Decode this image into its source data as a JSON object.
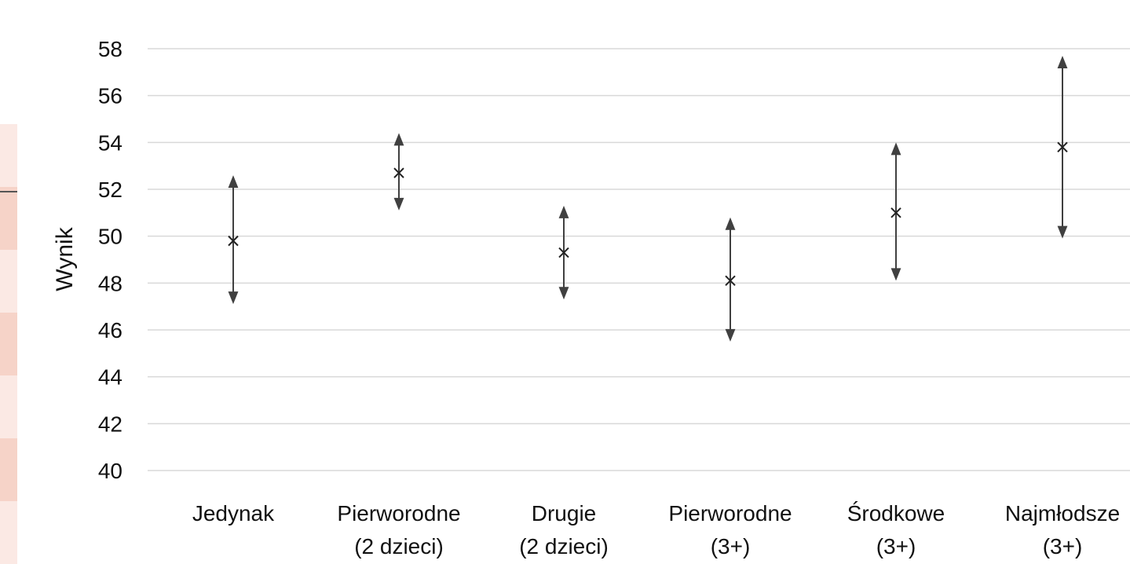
{
  "chart_data": {
    "type": "scatter",
    "title": "",
    "xlabel": "",
    "ylabel": "Wynik",
    "ylim": [
      40,
      58
    ],
    "yticks": [
      40,
      42,
      44,
      46,
      48,
      50,
      52,
      54,
      56,
      58
    ],
    "grid": true,
    "legend": "none",
    "categories": [
      {
        "line1": "Jedynak",
        "line2": ""
      },
      {
        "line1": "Pierworodne",
        "line2": "(2 dzieci)"
      },
      {
        "line1": "Drugie",
        "line2": "(2 dzieci)"
      },
      {
        "line1": "Pierworodne",
        "line2": "(3+)"
      },
      {
        "line1": "Środkowe",
        "line2": "(3+)"
      },
      {
        "line1": "Najmłodsze",
        "line2": "(3+)"
      }
    ],
    "series": [
      {
        "values": [
          49.8,
          52.7,
          49.3,
          48.1,
          51.0,
          53.8
        ],
        "lower": [
          47.1,
          51.1,
          47.3,
          45.5,
          48.1,
          49.9
        ],
        "upper": [
          52.6,
          54.4,
          51.3,
          50.8,
          54.0,
          57.7
        ]
      }
    ],
    "colors": {
      "grid": "#d9d9d9",
      "mark": "#222222",
      "errorbar": "#404040"
    }
  },
  "decor": {
    "left_strip_colors": [
      "#fbe9e4",
      "#f6d3c8",
      "#fbe9e4",
      "#f6d3c8",
      "#fbe9e4",
      "#f6d3c8",
      "#fbe9e4"
    ]
  }
}
